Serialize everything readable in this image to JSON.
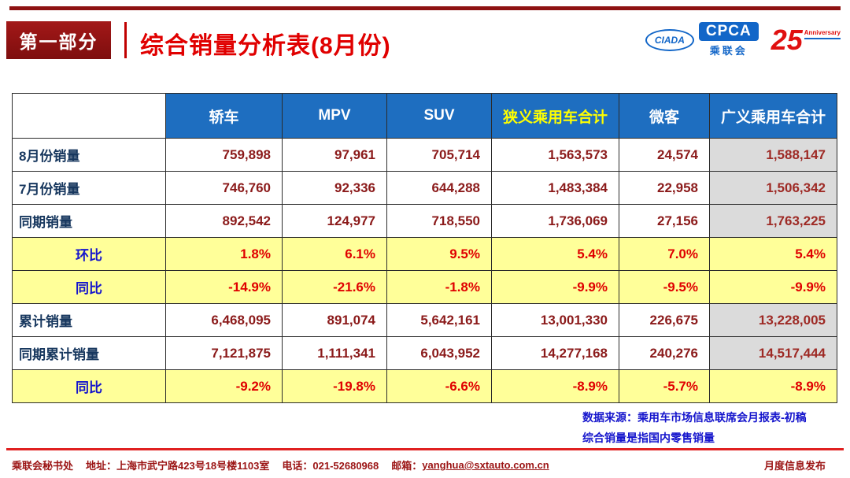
{
  "header": {
    "badge": "第一部分",
    "title": "综合销量分析表(8月份)",
    "logo": {
      "mark": "CIADA",
      "cpca": "CPCA",
      "sub": "乘联会",
      "anniversary": "25",
      "anniversary_label": "Anniversary"
    }
  },
  "table": {
    "columns": [
      "",
      "轿车",
      "MPV",
      "SUV",
      "狭义乘用车合计",
      "微客",
      "广义乘用车合计"
    ],
    "rows": [
      {
        "label": "8月份销量",
        "kind": "data",
        "values": [
          "759,898",
          "97,961",
          "705,714",
          "1,563,573",
          "24,574",
          "1,588,147"
        ]
      },
      {
        "label": "7月份销量",
        "kind": "data",
        "values": [
          "746,760",
          "92,336",
          "644,288",
          "1,483,384",
          "22,958",
          "1,506,342"
        ]
      },
      {
        "label": "同期销量",
        "kind": "data",
        "values": [
          "892,542",
          "124,977",
          "718,550",
          "1,736,069",
          "27,156",
          "1,763,225"
        ]
      },
      {
        "label": "环比",
        "kind": "pct",
        "values": [
          "1.8%",
          "6.1%",
          "9.5%",
          "5.4%",
          "7.0%",
          "5.4%"
        ]
      },
      {
        "label": "同比",
        "kind": "pct",
        "values": [
          "-14.9%",
          "-21.6%",
          "-1.8%",
          "-9.9%",
          "-9.5%",
          "-9.9%"
        ]
      },
      {
        "label": "累计销量",
        "kind": "data",
        "values": [
          "6,468,095",
          "891,074",
          "5,642,161",
          "13,001,330",
          "226,675",
          "13,228,005"
        ]
      },
      {
        "label": "同期累计销量",
        "kind": "data",
        "values": [
          "7,121,875",
          "1,111,341",
          "6,043,952",
          "14,277,168",
          "240,276",
          "14,517,444"
        ]
      },
      {
        "label": "同比",
        "kind": "pct",
        "values": [
          "-9.2%",
          "-19.8%",
          "-6.6%",
          "-8.9%",
          "-5.7%",
          "-8.9%"
        ]
      }
    ]
  },
  "notes": {
    "source": "数据来源：乘用车市场信息联席会月报表-初稿",
    "definition": "综合销量是指国内零售销量"
  },
  "footer": {
    "org": "乘联会秘书处",
    "address": "地址：上海市武宁路423号18号楼1103室",
    "phone": "电话：021-52680968",
    "mail_label": "邮箱：",
    "email": "yanghua@sxtauto.com.cn",
    "right": "月度信息发布"
  },
  "colors": {
    "header_blue": "#1e6ec0",
    "highlight_yellow": "#ffff99",
    "header_accent_yellow": "#ffff00",
    "value_dark_red": "#8b1a1a",
    "pct_red": "#e00000",
    "total_gray": "#dbdbdb",
    "title_red": "#e00000",
    "brand_blue": "#1266c8",
    "footer_dark_red": "#9b1414"
  }
}
